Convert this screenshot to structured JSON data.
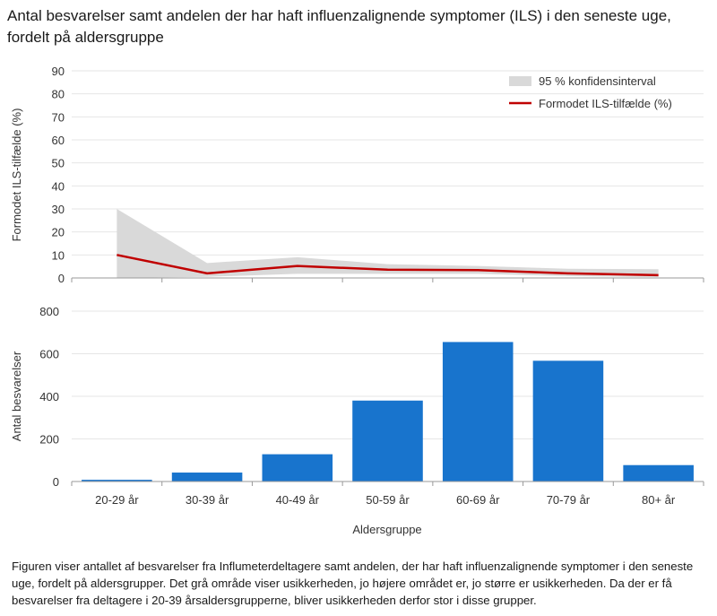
{
  "title": "Antal besvarelser samt andelen der har haft influenzalignende symptomer (ILS) i den seneste uge, fordelt på aldersgruppe",
  "caption": "Figuren viser antallet af besvarelser fra Influmeterdeltagere  samt andelen, der har haft influenzalignende symptomer i den seneste uge, fordelt på aldersgrupper. Det grå område viser usikkerheden,  jo højere området er, jo større er usikkerheden. Da der er få besvarelser fra deltagere i 20-39 årsaldersgrupperne, bliver usikkerheden derfor  stor i disse grupper.",
  "colors": {
    "line": "#c00000",
    "band": "#d9d9d9",
    "bar": "#1874cd"
  },
  "chart_data": [
    {
      "type": "line",
      "ylabel": "Formodet  ILS-tilfælde (%)",
      "ylim": [
        0,
        90
      ],
      "yticks": [
        0,
        10,
        20,
        30,
        40,
        50,
        60,
        70,
        80,
        90
      ],
      "categories": [
        "20-29 år",
        "30-39 år",
        "40-49 år",
        "50-59 år",
        "60-69 år",
        "70-79 år",
        "80+ år"
      ],
      "legend_position": "top-right",
      "band": {
        "name": "95 % konfidensinterval",
        "lower": [
          0,
          0.5,
          1.8,
          1.8,
          1.8,
          0.8,
          0.4
        ],
        "upper": [
          30,
          6.5,
          9,
          6,
          5.2,
          4,
          3.8
        ]
      },
      "series": [
        {
          "name": "Formodet ILS-tilfælde (%)",
          "values": [
            10,
            2,
            5.2,
            3.6,
            3.4,
            2,
            1.2
          ]
        }
      ]
    },
    {
      "type": "bar",
      "xlabel": "Aldersgruppe",
      "ylabel": "Antal besvarelser",
      "ylim": [
        0,
        800
      ],
      "yticks": [
        0,
        200,
        400,
        600,
        800
      ],
      "categories": [
        "20-29 år",
        "30-39 år",
        "40-49 år",
        "50-59 år",
        "60-69 år",
        "70-79 år",
        "80+ år"
      ],
      "values": [
        8,
        42,
        128,
        380,
        655,
        567,
        77
      ]
    }
  ]
}
